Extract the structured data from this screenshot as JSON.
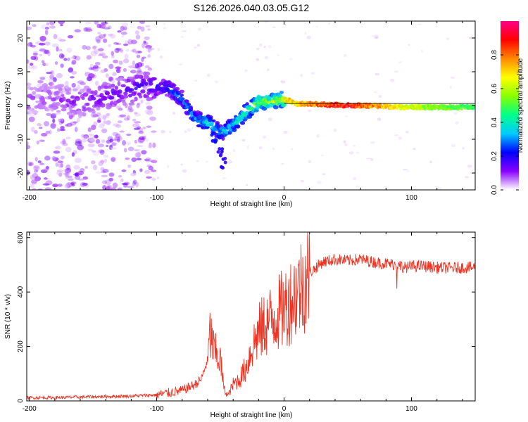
{
  "chart_data": [
    {
      "type": "heatmap",
      "title": "S126.2026.040.03.05.G12",
      "xlabel": "Height of straight line (km)",
      "ylabel": "Frequency (Hz)",
      "xlim": [
        -202,
        150
      ],
      "ylim": [
        -25,
        25
      ],
      "x_ticks": [
        -200,
        -100,
        0,
        100
      ],
      "y_ticks": [
        -20,
        -10,
        0,
        10,
        20
      ],
      "colorbar": {
        "label": "Normalized spectral amplitude",
        "range": [
          0,
          1
        ],
        "ticks": [
          "0.0",
          "0.2",
          "0.4",
          "0.6",
          "0.8"
        ],
        "colors": [
          "#ffffff",
          "#8800ff",
          "#0000ff",
          "#00ccff",
          "#00ff88",
          "#88ff00",
          "#ffff00",
          "#ff8800",
          "#ff0000",
          "#ff0088"
        ]
      },
      "ridge": [
        {
          "x": -200,
          "y": 2,
          "amp": 0.08
        },
        {
          "x": -180,
          "y": 2,
          "amp": 0.1
        },
        {
          "x": -160,
          "y": 1,
          "amp": 0.12
        },
        {
          "x": -140,
          "y": 3,
          "amp": 0.14
        },
        {
          "x": -120,
          "y": 5,
          "amp": 0.16
        },
        {
          "x": -100,
          "y": 6,
          "amp": 0.2
        },
        {
          "x": -90,
          "y": 5,
          "amp": 0.25
        },
        {
          "x": -80,
          "y": 2,
          "amp": 0.3
        },
        {
          "x": -70,
          "y": -4,
          "amp": 0.35
        },
        {
          "x": -60,
          "y": -5,
          "amp": 0.4
        },
        {
          "x": -50,
          "y": -8,
          "amp": 0.35
        },
        {
          "x": -40,
          "y": -6,
          "amp": 0.4
        },
        {
          "x": -30,
          "y": -2,
          "amp": 0.45
        },
        {
          "x": -20,
          "y": 1,
          "amp": 0.55
        },
        {
          "x": -10,
          "y": 1,
          "amp": 0.6
        },
        {
          "x": 0,
          "y": 2,
          "amp": 0.7
        },
        {
          "x": 10,
          "y": 0.5,
          "amp": 0.75
        },
        {
          "x": 30,
          "y": 0.3,
          "amp": 0.85
        },
        {
          "x": 50,
          "y": 0,
          "amp": 0.95
        },
        {
          "x": 70,
          "y": 0,
          "amp": 0.8
        },
        {
          "x": 90,
          "y": -0.5,
          "amp": 0.7
        },
        {
          "x": 110,
          "y": -0.5,
          "amp": 0.6
        },
        {
          "x": 130,
          "y": -0.5,
          "amp": 0.55
        },
        {
          "x": 150,
          "y": -0.5,
          "amp": 0.5
        }
      ],
      "branch": [
        {
          "x": -55,
          "y": -10,
          "amp": 0.25
        },
        {
          "x": -50,
          "y": -14,
          "amp": 0.2
        },
        {
          "x": -48,
          "y": -17,
          "amp": 0.2
        }
      ]
    },
    {
      "type": "line",
      "xlabel": "Height of straight line (km)",
      "ylabel": "SNR (10 * v/v)",
      "xlim": [
        -202,
        150
      ],
      "ylim": [
        0,
        620
      ],
      "x_ticks": [
        -200,
        -100,
        0,
        100
      ],
      "y_ticks": [
        0,
        200,
        400,
        600
      ],
      "color": "#ee3322",
      "series": [
        {
          "name": "SNR",
          "x": [
            -200,
            -180,
            -160,
            -140,
            -120,
            -100,
            -90,
            -80,
            -75,
            -70,
            -65,
            -60,
            -58,
            -55,
            -50,
            -47,
            -44,
            -40,
            -35,
            -30,
            -25,
            -20,
            -15,
            -10,
            -5,
            0,
            10,
            20,
            30,
            40,
            50,
            60,
            70,
            80,
            90,
            95,
            100,
            110,
            120,
            130,
            140,
            150
          ],
          "y": [
            12,
            12,
            14,
            16,
            18,
            22,
            30,
            38,
            50,
            60,
            80,
            150,
            250,
            180,
            150,
            40,
            20,
            60,
            80,
            120,
            200,
            250,
            280,
            300,
            320,
            340,
            400,
            470,
            510,
            520,
            515,
            520,
            510,
            505,
            500,
            490,
            495,
            495,
            490,
            488,
            490,
            490
          ]
        }
      ]
    }
  ]
}
